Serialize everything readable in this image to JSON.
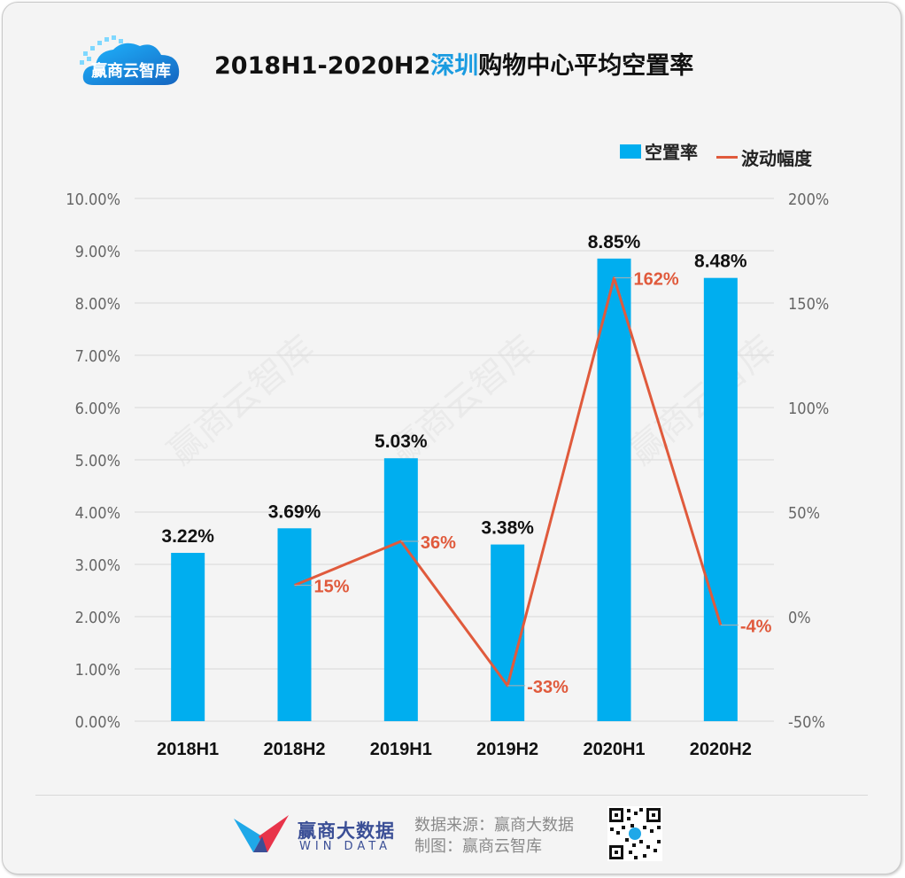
{
  "header": {
    "logo_text": "赢商云智库",
    "title_part1": "2018H1-2020H2",
    "title_highlight": "深圳",
    "title_part2": "购物中心平均空置率"
  },
  "legend": {
    "bar_label": "空置率",
    "line_label": "波动幅度"
  },
  "watermark_text": "赢商云智库",
  "footer": {
    "brand_cn": "赢商大数据",
    "brand_en": "WIN DATA",
    "source": "数据来源：赢商大数据",
    "made_by": "制图：赢商云智库"
  },
  "colors": {
    "bar": "#00aeef",
    "line": "#e05a3c",
    "title_highlight": "#1a9be0"
  },
  "chart_data": {
    "type": "bar",
    "categories": [
      "2018H1",
      "2018H2",
      "2019H1",
      "2019H2",
      "2020H1",
      "2020H2"
    ],
    "series": [
      {
        "name": "空置率",
        "type": "bar",
        "axis": "left",
        "values": [
          3.22,
          3.69,
          5.03,
          3.38,
          8.85,
          8.48
        ],
        "labels": [
          "3.22%",
          "3.69%",
          "5.03%",
          "3.38%",
          "8.85%",
          "8.48%"
        ]
      },
      {
        "name": "波动幅度",
        "type": "line",
        "axis": "right",
        "values": [
          null,
          15,
          36,
          -33,
          162,
          -4
        ],
        "labels": [
          "",
          "15%",
          "36%",
          "-33%",
          "162%",
          "-4%"
        ]
      }
    ],
    "y_left": {
      "min": 0,
      "max": 10,
      "step": 1,
      "ticks": [
        "0.00%",
        "1.00%",
        "2.00%",
        "3.00%",
        "4.00%",
        "5.00%",
        "6.00%",
        "7.00%",
        "8.00%",
        "9.00%",
        "10.00%"
      ]
    },
    "y_right": {
      "min": -50,
      "max": 200,
      "step": 50,
      "ticks": [
        "-50%",
        "0%",
        "50%",
        "100%",
        "150%",
        "200%"
      ]
    },
    "grid": true,
    "legend_position": "top-right"
  }
}
